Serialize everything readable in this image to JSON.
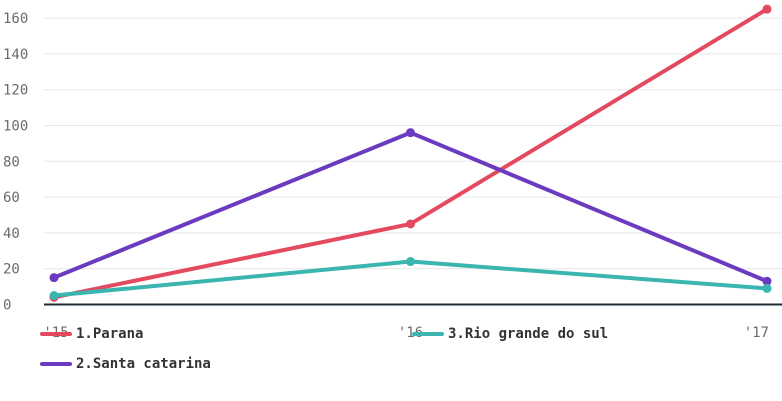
{
  "chart_data": {
    "type": "line",
    "x": [
      "'15",
      "'16",
      "'17"
    ],
    "ylim": [
      0,
      170
    ],
    "yticks": [
      0,
      20,
      40,
      60,
      80,
      100,
      120,
      140,
      160
    ],
    "grid": true,
    "legend_position": "bottom",
    "series": [
      {
        "name": "1.Parana",
        "color": "#e34a5f",
        "values": [
          4,
          45,
          165
        ]
      },
      {
        "name": "2.Santa catarina",
        "color": "#6b3bbf",
        "values": [
          15,
          96,
          13
        ]
      },
      {
        "name": "3.Rio grande do sul",
        "color": "#3bb5b0",
        "values": [
          5,
          24,
          9
        ]
      }
    ],
    "baseline_color": "#1f2a33"
  }
}
